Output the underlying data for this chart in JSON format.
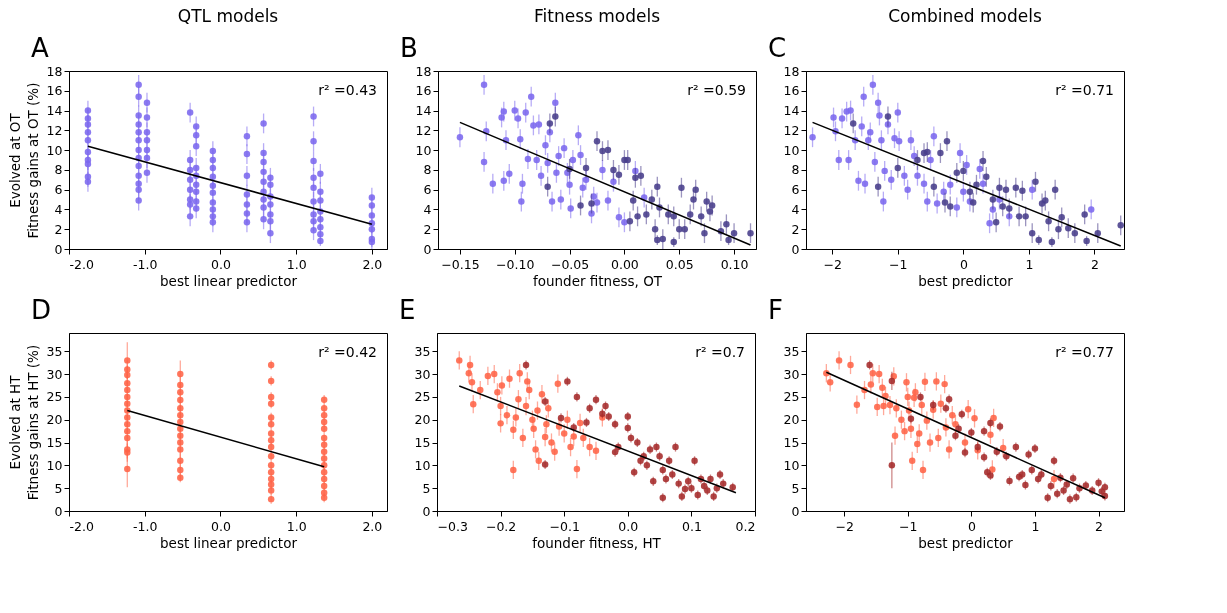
{
  "chart_data": [
    {
      "type": "scatter",
      "title": "QTL models",
      "subtitle": "Evolved at OT",
      "xlabel": "best linear predictor",
      "ylabel": "Fitness gains at OT (%)",
      "annotations": [
        "A",
        "r² =0.43"
      ],
      "marker": "circle",
      "xlim": [
        -2,
        2.2
      ],
      "xticks": [
        {
          "value": -2,
          "label": "-2.0"
        },
        {
          "value": -1,
          "label": "-1.0"
        },
        {
          "value": 0,
          "label": "0.0"
        },
        {
          "value": 1,
          "label": "1.0"
        },
        {
          "value": 2,
          "label": "2.0"
        }
      ],
      "ylim": [
        0,
        18
      ],
      "yticks": [
        0,
        2,
        4,
        6,
        8,
        10,
        12,
        14,
        16,
        18
      ],
      "series": [
        {
          "color": "#7b68ee",
          "x": [
            -1.75,
            -1.75,
            -1.75,
            -1.75,
            -1.75,
            -1.75,
            -1.75,
            -1.75,
            -1.75,
            -1.75,
            -1.08,
            -1.08,
            -1.08,
            -1.08,
            -1.08,
            -1.08,
            -1.08,
            -1.08,
            -1.08,
            -1.08,
            -1.08,
            -1.08,
            -1.08,
            -0.97,
            -0.97,
            -0.97,
            -0.97,
            -0.97,
            -0.97,
            -0.97,
            -0.4,
            -0.4,
            -0.4,
            -0.4,
            -0.4,
            -0.4,
            -0.4,
            -0.4,
            -0.32,
            -0.32,
            -0.32,
            -0.32,
            -0.32,
            -0.32,
            -0.32,
            -0.32,
            -0.32,
            -0.1,
            -0.1,
            -0.1,
            -0.1,
            -0.1,
            -0.1,
            -0.1,
            -0.1,
            -0.1,
            -0.1,
            0.35,
            0.35,
            0.35,
            0.35,
            0.35,
            0.35,
            0.35,
            0.57,
            0.57,
            0.57,
            0.57,
            0.57,
            0.57,
            0.57,
            0.57,
            0.57,
            0.66,
            0.66,
            0.66,
            0.66,
            0.66,
            0.66,
            0.66,
            1.23,
            1.23,
            1.23,
            1.23,
            1.23,
            1.23,
            1.23,
            1.23,
            1.23,
            1.32,
            1.32,
            1.32,
            1.32,
            1.32,
            1.32,
            1.32,
            1.32,
            2.0,
            2.0,
            2.0,
            2.0,
            2.0,
            2.0,
            2.0
          ],
          "values": [
            14,
            13.2,
            12.6,
            11.8,
            11,
            9.8,
            9,
            8.6,
            7.3,
            6.8,
            16.6,
            15.4,
            13.5,
            12.6,
            11.8,
            11,
            10,
            9.2,
            8.4,
            7.4,
            6.6,
            6,
            4.9,
            14.8,
            13.3,
            11.8,
            11,
            10,
            9.2,
            7.7,
            13.8,
            9,
            8,
            7,
            6,
            5,
            4.5,
            3.3,
            12.4,
            11.5,
            10.4,
            8.2,
            7.4,
            6.5,
            5.8,
            4.8,
            4.1,
            9.9,
            9,
            8.2,
            7.3,
            6.4,
            5.7,
            4.7,
            4,
            3.3,
            2.7,
            11.4,
            9.6,
            7.4,
            5.5,
            4.5,
            3.6,
            2.7,
            12.7,
            9.7,
            8.8,
            7.8,
            6.8,
            5.8,
            5,
            4.2,
            3,
            7.2,
            6.5,
            5.3,
            4.5,
            3.5,
            2.8,
            1.6,
            13.4,
            10.9,
            8.9,
            7.2,
            6.2,
            4.8,
            3.5,
            2.8,
            1.9,
            7.6,
            5.8,
            4.9,
            3.8,
            3,
            2.2,
            1.5,
            0.8,
            5.2,
            4.4,
            3.4,
            2.6,
            2,
            1.0,
            0.7
          ],
          "errors": [
            1,
            1,
            1,
            1,
            1,
            1,
            1,
            1,
            1,
            1,
            1,
            1,
            1,
            1,
            1,
            1,
            1,
            1,
            1,
            1,
            1,
            1,
            1,
            1,
            1,
            1,
            1,
            1,
            1,
            1,
            1,
            1,
            1,
            1,
            1,
            1,
            1,
            1,
            1,
            1,
            1,
            1,
            1,
            1,
            1,
            1,
            1,
            1,
            1,
            1,
            1,
            1,
            1,
            1,
            1,
            1,
            1,
            1,
            1,
            1,
            1,
            1,
            1,
            1,
            1,
            1,
            1,
            1,
            1,
            1,
            1,
            1,
            1,
            1,
            1,
            1,
            1,
            1,
            1,
            1,
            1,
            1,
            1,
            1,
            1,
            1,
            1,
            1,
            1,
            1,
            1,
            1,
            1,
            1,
            1,
            1,
            0.5,
            1,
            1,
            1,
            1,
            1,
            1,
            0.5
          ]
        },
        {
          "type": "line",
          "marker": "none",
          "color": "#000000",
          "x": [
            -1.75,
            2.0
          ],
          "values": [
            10.4,
            2.5
          ]
        }
      ]
    },
    {
      "type": "scatter",
      "title": "Fitness models",
      "xlabel": "founder fitness, OT",
      "annotations": [
        "B",
        "r² =0.59"
      ],
      "marker": "circle",
      "xlim": [
        -0.17,
        0.12
      ],
      "xticks": [
        {
          "value": -0.15,
          "label": "−0.15"
        },
        {
          "value": -0.1,
          "label": "−0.10"
        },
        {
          "value": -0.05,
          "label": "−0.05"
        },
        {
          "value": 0,
          "label": "0.00"
        },
        {
          "value": 0.05,
          "label": "0.05"
        },
        {
          "value": 0.1,
          "label": "0.10"
        }
      ],
      "ylim": [
        0,
        18
      ],
      "yticks": [
        0,
        2,
        4,
        6,
        8,
        10,
        12,
        14,
        16,
        18
      ],
      "series": [
        {
          "color": "#7b68ee",
          "x": [
            -0.15,
            -0.128,
            -0.126,
            -0.128,
            -0.12,
            -0.11,
            -0.112,
            -0.108,
            -0.105,
            -0.11,
            -0.1,
            -0.097,
            -0.095,
            -0.093,
            -0.094,
            -0.09,
            -0.088,
            -0.085,
            -0.083,
            -0.08,
            -0.078,
            -0.076,
            -0.072,
            -0.07,
            -0.068,
            -0.066,
            -0.063,
            -0.062,
            -0.06,
            -0.058,
            -0.055,
            -0.052,
            -0.05,
            -0.047,
            -0.049,
            -0.042,
            -0.04,
            -0.038,
            -0.035,
            -0.03,
            -0.028,
            -0.025,
            -0.02,
            -0.015,
            -0.01,
            -0.005,
            0,
            0.01,
            0.018
          ],
          "values": [
            11.3,
            16.6,
            11.9,
            8.8,
            6.6,
            13.9,
            13.3,
            11,
            7.6,
            6.9,
            14,
            13.2,
            11.1,
            6.6,
            4.8,
            13.8,
            9.1,
            15.4,
            12.5,
            9,
            12.6,
            7.4,
            10.5,
            8.7,
            11.8,
            4.8,
            14.8,
            7.7,
            9.4,
            5,
            10.2,
            7.7,
            6.5,
            9,
            4.1,
            11.5,
            9.5,
            6.2,
            7,
            3.6,
            5.3,
            4.7,
            8,
            4.9,
            6.8,
            3.2,
            2.7,
            7.9,
            5.2
          ],
          "errors": [
            1,
            1,
            1,
            1,
            1,
            1,
            1,
            1,
            1,
            1,
            1,
            1,
            1,
            1,
            1,
            1,
            1,
            1,
            1,
            1,
            1,
            1,
            1,
            1,
            1,
            1,
            1,
            1,
            1,
            1,
            1,
            1,
            1,
            1,
            1,
            1,
            1,
            1,
            1,
            1,
            1,
            1,
            1,
            1,
            1,
            1,
            1,
            1,
            1
          ]
        },
        {
          "color": "#483d8b",
          "x": [
            -0.07,
            -0.068,
            -0.063,
            -0.05,
            -0.04,
            -0.035,
            -0.03,
            -0.025,
            -0.02,
            -0.015,
            -0.01,
            -0.005,
            0,
            0.003,
            0.005,
            0.008,
            0.01,
            0.012,
            0.015,
            0.02,
            0.025,
            0.028,
            0.03,
            0.032,
            0.035,
            0.04,
            0.045,
            0.05,
            0.052,
            0.055,
            0.06,
            0.063,
            0.065,
            0.07,
            0.073,
            0.075,
            0.078,
            0.08,
            0.088,
            0.093,
            0.095,
            0.1,
            0.115,
            0.03,
            0.045
          ],
          "values": [
            6.3,
            12.7,
            13.4,
            8.1,
            4.4,
            8.2,
            4.6,
            10.9,
            9.9,
            10,
            8,
            7.5,
            9,
            9,
            2.8,
            4.9,
            7.2,
            3.3,
            7.4,
            3.5,
            5,
            2,
            6.3,
            4.2,
            1,
            3.5,
            0.7,
            2,
            6.2,
            2,
            3.5,
            5,
            6,
            3.3,
            1.6,
            4.8,
            3.8,
            4.4,
            1.8,
            2.5,
            0.9,
            1.6,
            1.6,
            0.9,
            3.3
          ],
          "errors": [
            1,
            1,
            1,
            1,
            1,
            1,
            1,
            1,
            1,
            1,
            1,
            1,
            1,
            1,
            1,
            1,
            1,
            1,
            1,
            1,
            1,
            1,
            1,
            1,
            1,
            1,
            0.5,
            1,
            1,
            1,
            1,
            1,
            1,
            1,
            1,
            1,
            1,
            1,
            1,
            1,
            0.5,
            1,
            1,
            0.5,
            1
          ]
        },
        {
          "type": "line",
          "marker": "none",
          "color": "#000000",
          "x": [
            -0.15,
            0.115
          ],
          "values": [
            12.8,
            0.4
          ]
        }
      ]
    },
    {
      "type": "scatter",
      "title": "Combined models",
      "xlabel": "best predictor",
      "annotations": [
        "C",
        "r² =0.71"
      ],
      "marker": "circle",
      "xlim": [
        -2.4,
        2.45
      ],
      "xticks": [
        {
          "value": -2,
          "label": "−2"
        },
        {
          "value": -1,
          "label": "−1"
        },
        0,
        1,
        2
      ],
      "ylim": [
        0,
        18
      ],
      "yticks": [
        0,
        2,
        4,
        6,
        8,
        10,
        12,
        14,
        16,
        18
      ],
      "series": [
        {
          "color": "#7b68ee",
          "x": [
            -2.3,
            -1.98,
            -1.95,
            -1.9,
            -1.85,
            -1.78,
            -1.75,
            -1.72,
            -1.65,
            -1.6,
            -1.55,
            -1.52,
            -1.5,
            -1.45,
            -1.42,
            -1.38,
            -1.35,
            -1.3,
            -1.28,
            -1.25,
            -1.22,
            -1.2,
            -1.15,
            -1.1,
            -1.05,
            -1,
            -0.98,
            -0.9,
            -0.85,
            -0.8,
            -0.75,
            -0.7,
            -0.6,
            -0.55,
            -0.5,
            -0.45,
            -0.4,
            -0.3,
            -0.2,
            -0.1,
            -0.05,
            0,
            0.05,
            0.1,
            0.25,
            0.3,
            0.4,
            0.45,
            0.55,
            0.7,
            1.05,
            1.95
          ],
          "values": [
            11.3,
            13.3,
            11.9,
            9,
            13.2,
            13.9,
            9,
            14,
            11,
            6.9,
            12.4,
            15.4,
            6.6,
            11,
            11.8,
            16.6,
            8.8,
            14.8,
            13.5,
            11,
            4.8,
            7.9,
            12.6,
            7,
            11.2,
            13.8,
            10.9,
            7.4,
            6,
            11,
            9.4,
            7.4,
            6.6,
            4.8,
            9,
            11.4,
            4.6,
            5.8,
            6.5,
            4.2,
            9.7,
            5.8,
            8.5,
            4.8,
            8.1,
            6.6,
            2.6,
            4,
            5,
            3.3,
            6,
            4
          ],
          "errors": [
            1,
            1,
            1,
            1,
            1,
            1,
            1,
            1,
            1,
            1,
            1,
            1,
            1,
            1,
            1,
            1,
            1,
            1,
            1,
            1,
            1,
            1,
            1,
            1,
            1,
            1,
            1,
            1,
            1,
            1,
            1,
            1,
            1,
            1,
            1,
            1,
            1,
            1,
            1,
            1,
            1,
            1,
            1,
            1,
            1,
            1,
            1,
            1,
            1,
            1,
            1,
            1
          ]
        },
        {
          "color": "#483d8b",
          "x": [
            -1.68,
            -1.3,
            -1.15,
            -1,
            -0.7,
            -0.6,
            -0.55,
            -0.45,
            -0.35,
            -0.28,
            -0.25,
            -0.2,
            -0.1,
            0,
            0.1,
            0.15,
            0.2,
            0.3,
            0.35,
            0.45,
            0.5,
            0.55,
            0.6,
            0.65,
            0.7,
            0.8,
            0.85,
            0.9,
            0.95,
            1.05,
            1.1,
            1.15,
            1.2,
            1.25,
            1.3,
            1.35,
            1.4,
            1.45,
            1.5,
            1.6,
            1.7,
            1.85,
            1.88,
            2.05,
            2.4
          ],
          "values": [
            12.7,
            6.3,
            13.4,
            8.2,
            9,
            9.7,
            9.8,
            6.3,
            9.7,
            4.7,
            10.9,
            4.3,
            7.7,
            7.9,
            5.8,
            4.7,
            6.5,
            8.9,
            7.3,
            5,
            2.7,
            6.2,
            4.3,
            6,
            4.1,
            6.2,
            3.3,
            5.9,
            3.3,
            1.6,
            6.8,
            0.9,
            4.6,
            4.9,
            2.8,
            0.7,
            6,
            2,
            3.2,
            2.1,
            1.6,
            3.5,
            0.8,
            1.6,
            2.4
          ],
          "errors": [
            1,
            1,
            1,
            1,
            1,
            1,
            1,
            1,
            1,
            1,
            1,
            1,
            1,
            1,
            1,
            1,
            1,
            1,
            1,
            1,
            1,
            1,
            1,
            1,
            1,
            1,
            1,
            1,
            1,
            1,
            1,
            0.5,
            1,
            1,
            1,
            0.5,
            1,
            1,
            1,
            1,
            1,
            1,
            0.5,
            1,
            1
          ]
        },
        {
          "type": "line",
          "marker": "none",
          "color": "#000000",
          "x": [
            -2.3,
            2.4
          ],
          "values": [
            12.8,
            0.3
          ]
        }
      ]
    },
    {
      "type": "scatter",
      "subtitle": "Evolved at HT",
      "xlabel": "best linear predictor",
      "ylabel": "Fitness gains at HT (%)",
      "annotations": [
        "D",
        "r² =0.42"
      ],
      "marker": "circle",
      "xlim": [
        -2,
        2.2
      ],
      "xticks": [
        {
          "value": -2,
          "label": "-2.0"
        },
        {
          "value": -1,
          "label": "-1.0"
        },
        {
          "value": 0,
          "label": "0.0"
        },
        {
          "value": 1,
          "label": "1.0"
        },
        {
          "value": 2,
          "label": "2.0"
        }
      ],
      "ylim": [
        0,
        39
      ],
      "yticks": [
        0,
        5,
        10,
        15,
        20,
        25,
        30,
        35
      ],
      "series": [
        {
          "color": "#ff6347",
          "x": [
            -1.23,
            -1.23,
            -1.23,
            -1.23,
            -1.23,
            -1.23,
            -1.23,
            -1.23,
            -1.23,
            -1.23,
            -1.23,
            -1.23,
            -1.23,
            -1.23,
            -1.23,
            -0.53,
            -0.53,
            -0.53,
            -0.53,
            -0.53,
            -0.53,
            -0.53,
            -0.53,
            -0.53,
            -0.53,
            -0.53,
            -0.53,
            -0.53,
            -0.53,
            0.67,
            0.67,
            0.67,
            0.67,
            0.67,
            0.67,
            0.67,
            0.67,
            0.67,
            0.67,
            0.67,
            0.67,
            0.67,
            0.67,
            0.67,
            0.67,
            1.37,
            1.37,
            1.37,
            1.37,
            1.37,
            1.37,
            1.37,
            1.37,
            1.37,
            1.37,
            1.37,
            1.37,
            1.37,
            1.37,
            1.37
          ],
          "values": [
            33,
            31,
            29.8,
            28,
            26.5,
            25,
            23.5,
            22,
            20.5,
            19,
            17.5,
            16,
            13.5,
            12.8,
            9.2,
            30,
            27.6,
            26,
            24.3,
            22.5,
            21,
            19.5,
            18,
            16.5,
            15,
            13.5,
            11,
            9,
            7.3,
            32,
            28.5,
            25,
            23.5,
            20.5,
            19,
            17,
            15.5,
            14,
            12,
            10,
            8.5,
            7,
            5.8,
            4.5,
            2.6,
            24.4,
            22.5,
            21,
            19.5,
            18,
            16,
            14.5,
            13,
            11.5,
            10,
            8.5,
            7,
            5.5,
            4,
            2.9
          ],
          "errors": [
            4,
            2,
            2,
            2,
            2,
            2,
            2,
            2,
            2,
            2,
            2,
            2,
            2,
            2,
            4,
            3,
            2,
            2,
            2,
            2,
            2,
            2,
            2,
            2,
            2,
            2,
            2,
            2,
            1,
            1,
            1,
            1,
            1,
            1,
            1,
            1,
            1,
            1,
            1,
            1,
            1,
            1,
            1,
            1,
            1,
            1,
            1,
            1,
            1,
            1,
            1,
            1,
            1,
            1,
            1,
            1,
            1,
            1,
            1,
            1
          ]
        },
        {
          "type": "line",
          "marker": "none",
          "color": "#000000",
          "x": [
            -1.23,
            1.37
          ],
          "values": [
            22,
            9.7
          ]
        }
      ]
    },
    {
      "type": "scatter",
      "xlabel": "founder fitness, HT",
      "annotations": [
        "E",
        "r² =0.7"
      ],
      "marker": "circle",
      "xlim": [
        -0.3,
        0.2
      ],
      "xticks": [
        {
          "value": -0.3,
          "label": "−0.3"
        },
        {
          "value": -0.2,
          "label": "−0.2"
        },
        {
          "value": -0.1,
          "label": "−0.1"
        },
        {
          "value": 0,
          "label": "0.0"
        },
        0.1,
        0.2
      ],
      "ylim": [
        0,
        39
      ],
      "yticks": [
        0,
        5,
        10,
        15,
        20,
        25,
        30,
        35
      ],
      "series": [
        {
          "color": "#ff6347",
          "x": [
            -0.265,
            -0.248,
            -0.25,
            -0.245,
            -0.243,
            -0.232,
            -0.22,
            -0.21,
            -0.205,
            -0.2,
            -0.2,
            -0.198,
            -0.19,
            -0.186,
            -0.18,
            -0.176,
            -0.172,
            -0.17,
            -0.165,
            -0.16,
            -0.158,
            -0.155,
            -0.15,
            -0.148,
            -0.145,
            -0.142,
            -0.14,
            -0.135,
            -0.13,
            -0.128,
            -0.125,
            -0.12,
            -0.115,
            -0.11,
            -0.108,
            -0.1,
            -0.095,
            -0.09,
            -0.085,
            -0.08,
            -0.075,
            -0.07,
            -0.06,
            -0.05,
            -0.04,
            -0.18
          ],
          "values": [
            33,
            32,
            30.2,
            28.2,
            23.4,
            26.5,
            29.6,
            30,
            26,
            23,
            19.2,
            27.5,
            21,
            29,
            17.8,
            20.5,
            24.5,
            30.2,
            16,
            23,
            28.4,
            26.5,
            20,
            18,
            13.5,
            22,
            11,
            25.6,
            16.2,
            19,
            22.5,
            15,
            13,
            27.9,
            18.5,
            17,
            20,
            14,
            16.3,
            9.2,
            19.3,
            16,
            14,
            13.2,
            20.5,
            9
          ],
          "errors": [
            2,
            2,
            2,
            2,
            2,
            2,
            2,
            2,
            2,
            2,
            2,
            2,
            2,
            2,
            2,
            2,
            2,
            2,
            2,
            2,
            2,
            2,
            2,
            2,
            2,
            2,
            2,
            2,
            2,
            2,
            2,
            2,
            2,
            2,
            2,
            2,
            2,
            2,
            2,
            2,
            2,
            2,
            2,
            2,
            2,
            2
          ]
        },
        {
          "color": "#a52a2a",
          "x": [
            -0.16,
            -0.095,
            -0.13,
            -0.105,
            -0.13,
            -0.08,
            -0.085,
            -0.065,
            -0.06,
            -0.05,
            -0.04,
            -0.035,
            -0.03,
            -0.02,
            -0.02,
            -0.015,
            0,
            0,
            0.005,
            0.01,
            0.015,
            0.02,
            0.025,
            0.03,
            0.035,
            0.04,
            0.045,
            0.05,
            0.055,
            0.055,
            0.06,
            0.065,
            0.07,
            0.075,
            0.08,
            0.085,
            0.09,
            0.095,
            0.1,
            0.105,
            0.11,
            0.115,
            0.12,
            0.125,
            0.13,
            0.135,
            0.14,
            0.145,
            0.15,
            0.165
          ],
          "values": [
            32,
            28.4,
            24,
            20.4,
            10.2,
            25,
            18.3,
            19.4,
            22.5,
            24.4,
            21.3,
            23,
            20.7,
            19,
            12.9,
            14,
            20.7,
            18.2,
            16,
            8.5,
            15,
            11,
            12,
            10,
            13.5,
            6.5,
            14,
            12,
            2.9,
            9,
            7,
            11,
            8,
            14,
            6,
            3.2,
            4.8,
            6.5,
            5,
            11,
            3.5,
            7,
            5.5,
            4.5,
            7,
            3.2,
            5,
            8,
            6,
            5.2
          ],
          "errors": [
            1,
            1,
            1,
            1,
            1,
            1,
            1,
            1,
            1,
            1,
            1,
            1,
            1,
            1,
            1,
            1,
            1,
            1,
            1,
            1,
            1,
            1,
            1,
            1,
            1,
            1,
            1,
            1,
            1,
            1,
            1,
            1,
            1,
            1,
            1,
            1,
            1,
            1,
            1,
            1,
            1,
            1,
            1,
            1,
            1,
            1,
            1,
            1,
            1,
            1
          ]
        },
        {
          "type": "line",
          "marker": "none",
          "color": "#000000",
          "x": [
            -0.265,
            0.17
          ],
          "values": [
            27.4,
            4
          ]
        }
      ]
    },
    {
      "type": "scatter",
      "xlabel": "best predictor",
      "annotations": [
        "F",
        "r² =0.77"
      ],
      "marker": "circle",
      "xlim": [
        -2.6,
        2.4
      ],
      "xticks": [
        {
          "value": -2,
          "label": "−2"
        },
        {
          "value": -1,
          "label": "−1"
        },
        0,
        1,
        2
      ],
      "ylim": [
        0,
        39
      ],
      "yticks": [
        0,
        5,
        10,
        15,
        20,
        25,
        30,
        35
      ],
      "series": [
        {
          "color": "#ff6347",
          "x": [
            -2.28,
            -2.22,
            -2.08,
            -1.9,
            -1.8,
            -1.68,
            -1.58,
            -1.55,
            -1.48,
            -1.45,
            -1.4,
            -1.38,
            -1.35,
            -1.28,
            -1.22,
            -1.2,
            -1.18,
            -1.1,
            -1.05,
            -1.02,
            -1,
            -0.98,
            -0.95,
            -0.93,
            -0.9,
            -0.88,
            -0.85,
            -0.82,
            -0.78,
            -0.76,
            -0.73,
            -0.7,
            -0.65,
            -0.6,
            -0.55,
            -0.52,
            -0.48,
            -0.42,
            -0.4,
            -0.35,
            -0.3,
            -0.25,
            -0.1,
            -0.05,
            0.05,
            0.1,
            0.3,
            0.33,
            0.35,
            0.5,
            1.3
          ],
          "values": [
            30.2,
            28.2,
            33,
            32,
            23.3,
            26.5,
            27.7,
            30.2,
            22.8,
            30,
            27,
            23,
            25.2,
            23.2,
            29.5,
            16.5,
            22.5,
            20,
            17.5,
            28.2,
            25,
            22,
            18,
            11,
            24.8,
            26,
            14.7,
            17,
            23.2,
            9,
            28.3,
            19.8,
            15,
            22.2,
            28.4,
            16,
            23.5,
            27.8,
            18.3,
            13.5,
            21,
            19,
            15,
            22.3,
            20.3,
            13.3,
            16.7,
            9.1,
            20.4,
            13.8,
            7
          ],
          "errors": [
            2,
            2,
            2,
            2,
            2,
            2,
            2,
            2,
            2,
            2,
            2,
            2,
            2,
            2,
            2,
            2,
            2,
            2,
            2,
            2,
            2,
            2,
            2,
            2,
            2,
            2,
            2,
            2,
            2,
            2,
            2,
            2,
            2,
            2,
            2,
            2,
            2,
            2,
            2,
            2,
            2,
            2,
            2,
            2,
            2,
            2,
            2,
            2,
            2,
            2,
            2
          ]
        },
        {
          "color": "#a52a2a",
          "x": [
            -1.6,
            -1.25,
            -1.25,
            -0.95,
            -0.8,
            -0.6,
            -0.4,
            -0.35,
            -0.25,
            -0.15,
            -0.2,
            -0.1,
            0,
            0.1,
            0.2,
            0.2,
            0.25,
            0.3,
            0.3,
            0.4,
            0.45,
            0.55,
            0.6,
            0.7,
            0.75,
            0.8,
            0.85,
            0.9,
            0.95,
            1,
            1.05,
            1.1,
            1.2,
            1.25,
            1.3,
            1.35,
            1.4,
            1.45,
            1.5,
            1.55,
            1.6,
            1.65,
            1.7,
            1.8,
            1.9,
            2,
            2.05,
            2.1,
            2.1
          ],
          "values": [
            32,
            28.5,
            10,
            20.2,
            25,
            23.2,
            22.5,
            24.5,
            16.5,
            21.2,
            18,
            12.8,
            17.2,
            14,
            11.8,
            17.5,
            8.5,
            7.8,
            19.3,
            13,
            18.5,
            12,
            6.6,
            14,
            7.5,
            8,
            5.7,
            12.4,
            9,
            13.7,
            7,
            8,
            2.9,
            5.5,
            11,
            3.8,
            7.3,
            4.5,
            5.8,
            2.6,
            7.2,
            3,
            5,
            5.6,
            4.5,
            6.2,
            4.3,
            5.2,
            3.3
          ],
          "errors": [
            1,
            2,
            5,
            1,
            1,
            1,
            1,
            1,
            1,
            1,
            1,
            1,
            1,
            1,
            1,
            1,
            1,
            1,
            1,
            1,
            1,
            1,
            1,
            1,
            1,
            1,
            1,
            1,
            1,
            1,
            1,
            1,
            1,
            1,
            1,
            1,
            1,
            1,
            1,
            1,
            1,
            1,
            1,
            1,
            1,
            1,
            1,
            1,
            1
          ]
        },
        {
          "type": "line",
          "marker": "none",
          "color": "#000000",
          "x": [
            -2.28,
            2.1
          ],
          "values": [
            30.4,
            2.9
          ]
        }
      ]
    }
  ]
}
